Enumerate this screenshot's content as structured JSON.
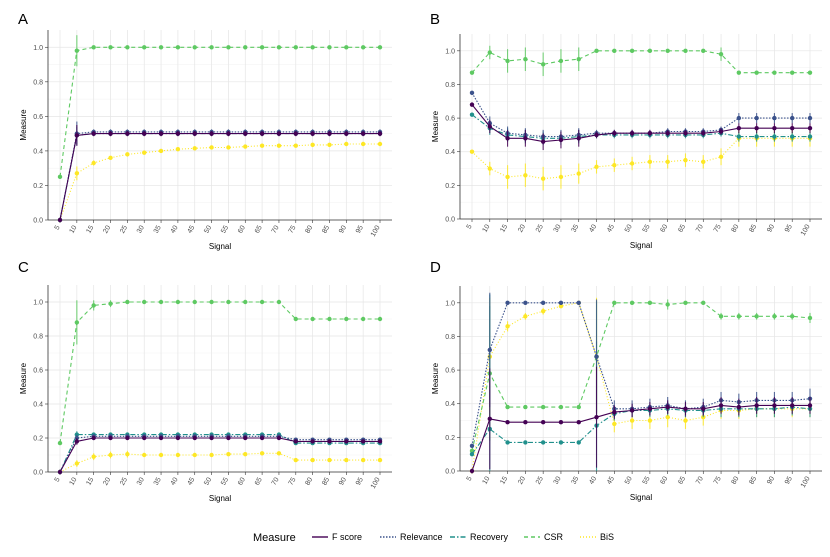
{
  "legend": {
    "title": "Measure",
    "entries": [
      {
        "name": "F score",
        "color": "#440154",
        "dash": "solid"
      },
      {
        "name": "Relevance",
        "color": "#3b528b",
        "dash": "dotted"
      },
      {
        "name": "Recovery",
        "color": "#21908c",
        "dash": "dashdot"
      },
      {
        "name": "CSR",
        "color": "#5ec962",
        "dash": "dashed"
      },
      {
        "name": "BiS",
        "color": "#fde725",
        "dash": "dot"
      }
    ]
  },
  "chart_data": [
    {
      "panel": "A",
      "type": "line",
      "xlabel": "Signal",
      "ylabel": "Measure",
      "ylim": [
        0,
        1.1
      ],
      "yticks": [
        0.0,
        0.2,
        0.4,
        0.6,
        0.8,
        1.0
      ],
      "ytick_labels": [
        "0.0",
        "0.2",
        "0.4",
        "0.6",
        "0.8",
        "1.0"
      ],
      "x": [
        "5",
        "10",
        "15",
        "20",
        "25",
        "30",
        "35",
        "40",
        "45",
        "50",
        "55",
        "60",
        "65",
        "70",
        "75",
        "80",
        "85",
        "90",
        "95",
        "100"
      ],
      "series": [
        {
          "name": "F score",
          "values": [
            0.0,
            0.49,
            0.5,
            0.5,
            0.5,
            0.5,
            0.5,
            0.5,
            0.5,
            0.5,
            0.5,
            0.5,
            0.5,
            0.5,
            0.5,
            0.5,
            0.5,
            0.5,
            0.5,
            0.5
          ],
          "errors": [
            0.0,
            0.06,
            0.015,
            0.015,
            0.015,
            0.015,
            0.015,
            0.015,
            0.015,
            0.015,
            0.015,
            0.015,
            0.015,
            0.015,
            0.015,
            0.015,
            0.015,
            0.015,
            0.015,
            0.015
          ]
        },
        {
          "name": "Relevance",
          "values": [
            0.0,
            0.5,
            0.51,
            0.51,
            0.51,
            0.51,
            0.51,
            0.51,
            0.51,
            0.51,
            0.51,
            0.51,
            0.51,
            0.51,
            0.51,
            0.51,
            0.51,
            0.51,
            0.51,
            0.51
          ],
          "errors": [
            0.0,
            0.07,
            0.015,
            0.015,
            0.015,
            0.015,
            0.015,
            0.015,
            0.015,
            0.015,
            0.015,
            0.015,
            0.015,
            0.015,
            0.015,
            0.015,
            0.015,
            0.015,
            0.015,
            0.015
          ]
        },
        {
          "name": "Recovery",
          "values": [
            0.0,
            0.49,
            0.5,
            0.5,
            0.5,
            0.5,
            0.5,
            0.5,
            0.5,
            0.5,
            0.5,
            0.5,
            0.5,
            0.5,
            0.5,
            0.5,
            0.5,
            0.5,
            0.5,
            0.5
          ],
          "errors": [
            0.0,
            0.05,
            0.01,
            0.01,
            0.01,
            0.01,
            0.01,
            0.01,
            0.01,
            0.01,
            0.01,
            0.01,
            0.01,
            0.01,
            0.01,
            0.01,
            0.01,
            0.01,
            0.01,
            0.01
          ]
        },
        {
          "name": "CSR",
          "values": [
            0.25,
            0.98,
            1.0,
            1.0,
            1.0,
            1.0,
            1.0,
            1.0,
            1.0,
            1.0,
            1.0,
            1.0,
            1.0,
            1.0,
            1.0,
            1.0,
            1.0,
            1.0,
            1.0,
            1.0
          ],
          "errors": [
            0.0,
            0.09,
            0.0,
            0.0,
            0.0,
            0.0,
            0.0,
            0.0,
            0.0,
            0.0,
            0.0,
            0.0,
            0.0,
            0.0,
            0.0,
            0.0,
            0.0,
            0.0,
            0.0,
            0.0
          ]
        },
        {
          "name": "BiS",
          "values": [
            0.0,
            0.27,
            0.33,
            0.36,
            0.38,
            0.39,
            0.4,
            0.41,
            0.415,
            0.42,
            0.42,
            0.425,
            0.43,
            0.43,
            0.43,
            0.435,
            0.435,
            0.44,
            0.44,
            0.44
          ],
          "errors": [
            0.0,
            0.04,
            0.015,
            0.01,
            0.01,
            0.01,
            0.01,
            0.01,
            0.01,
            0.01,
            0.01,
            0.01,
            0.01,
            0.01,
            0.01,
            0.01,
            0.01,
            0.01,
            0.01,
            0.01
          ]
        }
      ]
    },
    {
      "panel": "B",
      "type": "line",
      "xlabel": "Signal",
      "ylabel": "Measure",
      "ylim": [
        0,
        1.1
      ],
      "yticks": [
        0.0,
        0.2,
        0.4,
        0.6,
        0.8,
        1.0
      ],
      "ytick_labels": [
        "0.0",
        "0.2",
        "0.4",
        "0.6",
        "0.8",
        "1.0"
      ],
      "x": [
        "5",
        "10",
        "15",
        "20",
        "25",
        "30",
        "35",
        "40",
        "45",
        "50",
        "55",
        "60",
        "65",
        "70",
        "75",
        "80",
        "85",
        "90",
        "95",
        "100"
      ],
      "series": [
        {
          "name": "F score",
          "values": [
            0.68,
            0.55,
            0.48,
            0.48,
            0.46,
            0.47,
            0.48,
            0.5,
            0.51,
            0.51,
            0.51,
            0.51,
            0.51,
            0.51,
            0.52,
            0.54,
            0.54,
            0.54,
            0.54,
            0.54
          ],
          "errors": [
            0.0,
            0.04,
            0.05,
            0.05,
            0.05,
            0.05,
            0.05,
            0.02,
            0.02,
            0.02,
            0.02,
            0.02,
            0.02,
            0.02,
            0.02,
            0.03,
            0.03,
            0.03,
            0.03,
            0.03
          ]
        },
        {
          "name": "Relevance",
          "values": [
            0.75,
            0.57,
            0.51,
            0.5,
            0.49,
            0.49,
            0.5,
            0.51,
            0.51,
            0.51,
            0.51,
            0.52,
            0.52,
            0.52,
            0.53,
            0.6,
            0.6,
            0.6,
            0.6,
            0.6
          ],
          "errors": [
            0.0,
            0.04,
            0.04,
            0.04,
            0.04,
            0.04,
            0.04,
            0.02,
            0.02,
            0.02,
            0.02,
            0.02,
            0.02,
            0.02,
            0.02,
            0.03,
            0.03,
            0.03,
            0.03,
            0.03
          ]
        },
        {
          "name": "Recovery",
          "values": [
            0.62,
            0.54,
            0.5,
            0.49,
            0.48,
            0.48,
            0.49,
            0.5,
            0.5,
            0.5,
            0.5,
            0.5,
            0.5,
            0.5,
            0.51,
            0.49,
            0.49,
            0.49,
            0.49,
            0.49
          ],
          "errors": [
            0.0,
            0.04,
            0.04,
            0.04,
            0.04,
            0.04,
            0.04,
            0.02,
            0.02,
            0.02,
            0.02,
            0.02,
            0.02,
            0.02,
            0.02,
            0.03,
            0.03,
            0.03,
            0.03,
            0.03
          ]
        },
        {
          "name": "CSR",
          "values": [
            0.87,
            0.99,
            0.94,
            0.95,
            0.92,
            0.94,
            0.95,
            1.0,
            1.0,
            1.0,
            1.0,
            1.0,
            1.0,
            1.0,
            0.98,
            0.87,
            0.87,
            0.87,
            0.87,
            0.87
          ],
          "errors": [
            0.0,
            0.04,
            0.07,
            0.07,
            0.07,
            0.07,
            0.07,
            0.0,
            0.0,
            0.0,
            0.0,
            0.0,
            0.0,
            0.0,
            0.04,
            0.0,
            0.0,
            0.0,
            0.0,
            0.0
          ]
        },
        {
          "name": "BiS",
          "values": [
            0.4,
            0.3,
            0.25,
            0.26,
            0.24,
            0.25,
            0.27,
            0.31,
            0.32,
            0.33,
            0.34,
            0.34,
            0.35,
            0.34,
            0.37,
            0.48,
            0.48,
            0.48,
            0.48,
            0.48
          ],
          "errors": [
            0.0,
            0.04,
            0.07,
            0.07,
            0.07,
            0.07,
            0.06,
            0.04,
            0.04,
            0.04,
            0.04,
            0.04,
            0.04,
            0.04,
            0.05,
            0.05,
            0.05,
            0.05,
            0.05,
            0.05
          ]
        }
      ]
    },
    {
      "panel": "C",
      "type": "line",
      "xlabel": "Signal",
      "ylabel": "Measure",
      "ylim": [
        0,
        1.1
      ],
      "yticks": [
        0.0,
        0.2,
        0.4,
        0.6,
        0.8,
        1.0
      ],
      "ytick_labels": [
        "0.0",
        "0.2",
        "0.4",
        "0.6",
        "0.8",
        "1.0"
      ],
      "x": [
        "5",
        "10",
        "15",
        "20",
        "25",
        "30",
        "35",
        "40",
        "45",
        "50",
        "55",
        "60",
        "65",
        "70",
        "75",
        "80",
        "85",
        "90",
        "95",
        "100"
      ],
      "series": [
        {
          "name": "F score",
          "values": [
            0.0,
            0.18,
            0.2,
            0.2,
            0.2,
            0.2,
            0.2,
            0.2,
            0.2,
            0.2,
            0.2,
            0.2,
            0.2,
            0.2,
            0.18,
            0.18,
            0.18,
            0.18,
            0.18,
            0.18
          ],
          "errors": [
            0.0,
            0.02,
            0.01,
            0.01,
            0.01,
            0.01,
            0.01,
            0.01,
            0.01,
            0.01,
            0.01,
            0.01,
            0.01,
            0.01,
            0.01,
            0.01,
            0.01,
            0.01,
            0.01,
            0.01
          ]
        },
        {
          "name": "Relevance",
          "values": [
            0.0,
            0.2,
            0.21,
            0.21,
            0.21,
            0.21,
            0.21,
            0.21,
            0.21,
            0.21,
            0.21,
            0.21,
            0.21,
            0.21,
            0.19,
            0.19,
            0.19,
            0.19,
            0.19,
            0.19
          ],
          "errors": [
            0.0,
            0.02,
            0.01,
            0.01,
            0.01,
            0.01,
            0.01,
            0.01,
            0.01,
            0.01,
            0.01,
            0.01,
            0.01,
            0.01,
            0.01,
            0.01,
            0.01,
            0.01,
            0.01,
            0.01
          ]
        },
        {
          "name": "Recovery",
          "values": [
            0.0,
            0.22,
            0.22,
            0.22,
            0.22,
            0.22,
            0.22,
            0.22,
            0.22,
            0.22,
            0.22,
            0.22,
            0.22,
            0.22,
            0.17,
            0.17,
            0.17,
            0.17,
            0.17,
            0.17
          ],
          "errors": [
            0.0,
            0.02,
            0.01,
            0.01,
            0.01,
            0.01,
            0.01,
            0.01,
            0.01,
            0.01,
            0.01,
            0.01,
            0.01,
            0.01,
            0.01,
            0.01,
            0.01,
            0.01,
            0.01,
            0.01
          ]
        },
        {
          "name": "CSR",
          "values": [
            0.17,
            0.88,
            0.98,
            0.99,
            1.0,
            1.0,
            1.0,
            1.0,
            1.0,
            1.0,
            1.0,
            1.0,
            1.0,
            1.0,
            0.9,
            0.9,
            0.9,
            0.9,
            0.9,
            0.9
          ],
          "errors": [
            0.0,
            0.13,
            0.03,
            0.02,
            0.0,
            0.0,
            0.0,
            0.0,
            0.0,
            0.0,
            0.0,
            0.0,
            0.0,
            0.0,
            0.0,
            0.0,
            0.0,
            0.0,
            0.0,
            0.0
          ]
        },
        {
          "name": "BiS",
          "values": [
            0.0,
            0.05,
            0.09,
            0.1,
            0.105,
            0.1,
            0.1,
            0.1,
            0.1,
            0.1,
            0.105,
            0.105,
            0.11,
            0.11,
            0.07,
            0.07,
            0.07,
            0.07,
            0.07,
            0.07
          ],
          "errors": [
            0.0,
            0.02,
            0.02,
            0.02,
            0.02,
            0.01,
            0.01,
            0.01,
            0.01,
            0.01,
            0.01,
            0.01,
            0.01,
            0.01,
            0.01,
            0.01,
            0.01,
            0.01,
            0.01,
            0.01
          ]
        }
      ]
    },
    {
      "panel": "D",
      "type": "line",
      "xlabel": "Signal",
      "ylabel": "Measure",
      "ylim": [
        0,
        1.1
      ],
      "yticks": [
        0.0,
        0.2,
        0.4,
        0.6,
        0.8,
        1.0
      ],
      "ytick_labels": [
        "0.0",
        "0.2",
        "0.4",
        "0.6",
        "0.8",
        "1.0"
      ],
      "x": [
        "5",
        "10",
        "15",
        "20",
        "25",
        "30",
        "35",
        "40",
        "45",
        "50",
        "55",
        "60",
        "65",
        "70",
        "75",
        "80",
        "85",
        "90",
        "95",
        "100"
      ],
      "series": [
        {
          "name": "F score",
          "values": [
            0.0,
            0.31,
            0.29,
            0.29,
            0.29,
            0.29,
            0.29,
            0.32,
            0.35,
            0.36,
            0.37,
            0.38,
            0.37,
            0.37,
            0.39,
            0.38,
            0.39,
            0.39,
            0.39,
            0.39
          ],
          "errors": [
            0.0,
            0.3,
            0.0,
            0.0,
            0.0,
            0.0,
            0.0,
            0.3,
            0.04,
            0.04,
            0.04,
            0.04,
            0.04,
            0.04,
            0.05,
            0.05,
            0.05,
            0.05,
            0.05,
            0.05
          ]
        },
        {
          "name": "Relevance",
          "values": [
            0.15,
            0.72,
            1.0,
            1.0,
            1.0,
            1.0,
            1.0,
            0.68,
            0.37,
            0.37,
            0.38,
            0.39,
            0.37,
            0.38,
            0.42,
            0.41,
            0.42,
            0.42,
            0.42,
            0.43
          ],
          "errors": [
            0.0,
            0.34,
            0.0,
            0.0,
            0.0,
            0.0,
            0.0,
            0.34,
            0.05,
            0.05,
            0.05,
            0.05,
            0.05,
            0.05,
            0.05,
            0.05,
            0.05,
            0.05,
            0.05,
            0.06
          ]
        },
        {
          "name": "Recovery",
          "values": [
            0.1,
            0.25,
            0.17,
            0.17,
            0.17,
            0.17,
            0.17,
            0.27,
            0.34,
            0.36,
            0.36,
            0.37,
            0.36,
            0.36,
            0.37,
            0.37,
            0.37,
            0.37,
            0.38,
            0.37
          ],
          "errors": [
            0.0,
            0.8,
            0.0,
            0.0,
            0.0,
            0.0,
            0.0,
            0.5,
            0.04,
            0.04,
            0.04,
            0.04,
            0.04,
            0.04,
            0.05,
            0.05,
            0.05,
            0.05,
            0.05,
            0.05
          ]
        },
        {
          "name": "CSR",
          "values": [
            0.12,
            0.58,
            0.38,
            0.38,
            0.38,
            0.38,
            0.38,
            0.68,
            1.0,
            1.0,
            1.0,
            0.99,
            1.0,
            1.0,
            0.92,
            0.92,
            0.92,
            0.92,
            0.92,
            0.91
          ],
          "errors": [
            0.0,
            0.4,
            0.0,
            0.0,
            0.0,
            0.0,
            0.0,
            0.33,
            0.0,
            0.0,
            0.0,
            0.03,
            0.0,
            0.0,
            0.02,
            0.02,
            0.02,
            0.02,
            0.02,
            0.03
          ]
        },
        {
          "name": "BiS",
          "values": [
            0.0,
            0.68,
            0.86,
            0.92,
            0.95,
            0.98,
            1.0,
            0.68,
            0.28,
            0.3,
            0.3,
            0.32,
            0.3,
            0.32,
            0.36,
            0.36,
            0.37,
            0.37,
            0.37,
            0.37
          ],
          "errors": [
            0.0,
            0.35,
            0.03,
            0.02,
            0.02,
            0.01,
            0.0,
            0.35,
            0.05,
            0.05,
            0.05,
            0.06,
            0.05,
            0.05,
            0.05,
            0.05,
            0.05,
            0.05,
            0.05,
            0.05
          ]
        }
      ]
    }
  ]
}
